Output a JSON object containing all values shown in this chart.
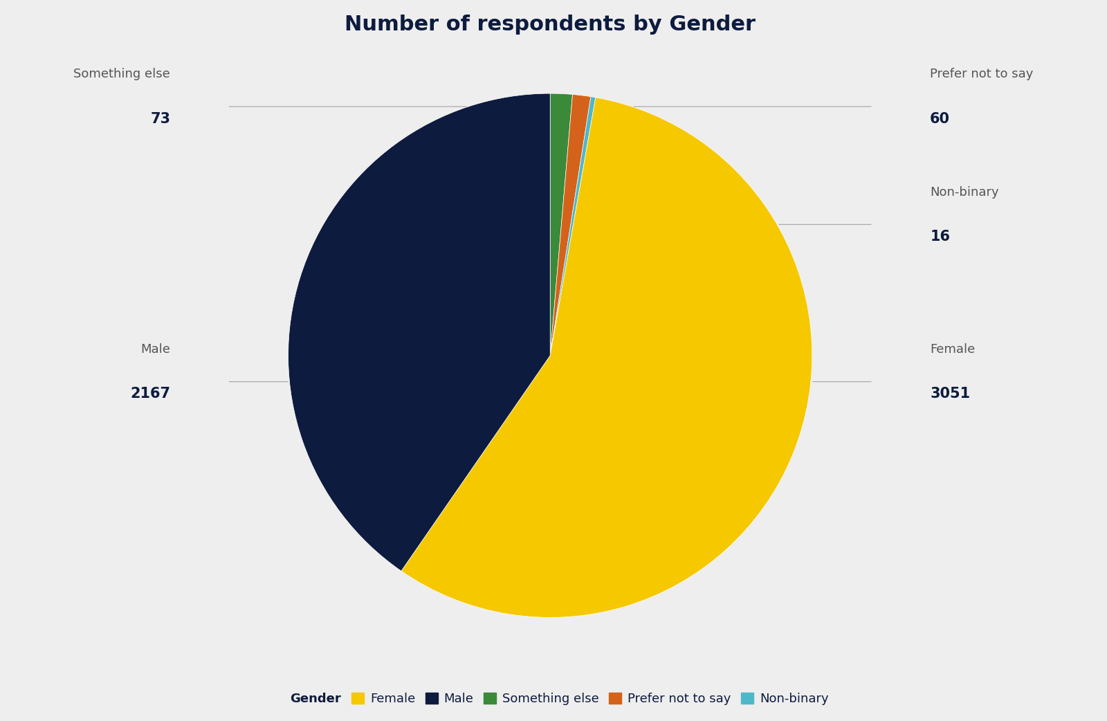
{
  "title": "Number of respondents by Gender",
  "categories": [
    "Something else",
    "Prefer not to say",
    "Non-binary",
    "Female",
    "Male"
  ],
  "values": [
    73,
    60,
    16,
    3051,
    2167
  ],
  "colors": [
    "#3A8A3A",
    "#D4621A",
    "#4EB8C8",
    "#F5C800",
    "#0D1B3E"
  ],
  "legend_order": [
    "Female",
    "Male",
    "Something else",
    "Prefer not to say",
    "Non-binary"
  ],
  "legend_colors": [
    "#F5C800",
    "#0D1B3E",
    "#3A8A3A",
    "#D4621A",
    "#4EB8C8"
  ],
  "background_color": "#EEEEEE",
  "title_color": "#0D1B3E",
  "label_color": "#555555",
  "value_color": "#0D1B3E",
  "line_color": "#AAAAAA",
  "title_fontsize": 22,
  "label_fontsize": 13,
  "value_fontsize": 15,
  "legend_fontsize": 13
}
